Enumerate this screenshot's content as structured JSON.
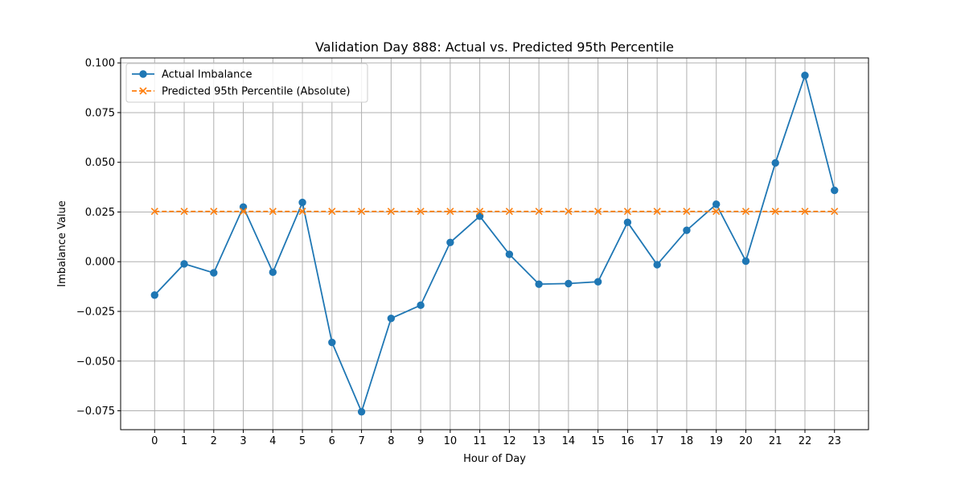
{
  "chart_data": {
    "type": "line",
    "title": "Validation Day 888: Actual vs. Predicted 95th Percentile",
    "xlabel": "Hour of Day",
    "ylabel": "Imbalance Value",
    "x": [
      0,
      1,
      2,
      3,
      4,
      5,
      6,
      7,
      8,
      9,
      10,
      11,
      12,
      13,
      14,
      15,
      16,
      17,
      18,
      19,
      20,
      21,
      22,
      23
    ],
    "x_tick_labels": [
      "0",
      "1",
      "2",
      "3",
      "4",
      "5",
      "6",
      "7",
      "8",
      "9",
      "10",
      "11",
      "12",
      "13",
      "14",
      "15",
      "16",
      "17",
      "18",
      "19",
      "20",
      "21",
      "22",
      "23"
    ],
    "y_tick_values": [
      -0.075,
      -0.05,
      -0.025,
      0.0,
      0.025,
      0.05,
      0.075,
      0.1
    ],
    "y_tick_labels": [
      "−0.075",
      "−0.050",
      "−0.025",
      "0.000",
      "0.025",
      "0.050",
      "0.075",
      "0.100"
    ],
    "xlim": [
      -1.15,
      24.15
    ],
    "ylim": [
      -0.0845,
      0.1025
    ],
    "grid": true,
    "legend_position": "top-left",
    "series": [
      {
        "name": "Actual Imbalance",
        "color": "#1f77b4",
        "marker": "circle",
        "line_style": "solid",
        "values": [
          -0.0168,
          -0.0011,
          -0.0056,
          0.0275,
          -0.0053,
          0.0298,
          -0.0406,
          -0.0755,
          -0.0285,
          -0.0219,
          0.0097,
          0.0229,
          0.0037,
          -0.0113,
          -0.011,
          -0.0101,
          0.0198,
          -0.0015,
          0.0158,
          0.0289,
          0.0003,
          0.0497,
          0.0937,
          0.0359
        ]
      },
      {
        "name": "Predicted 95th Percentile (Absolute)",
        "color": "#ff7f0e",
        "marker": "x",
        "line_style": "dashed",
        "values": [
          0.0253,
          0.0253,
          0.0253,
          0.0253,
          0.0253,
          0.0253,
          0.0253,
          0.0253,
          0.0253,
          0.0253,
          0.0253,
          0.0253,
          0.0253,
          0.0253,
          0.0253,
          0.0253,
          0.0253,
          0.0253,
          0.0253,
          0.0253,
          0.0253,
          0.0253,
          0.0253,
          0.0253
        ]
      }
    ]
  }
}
